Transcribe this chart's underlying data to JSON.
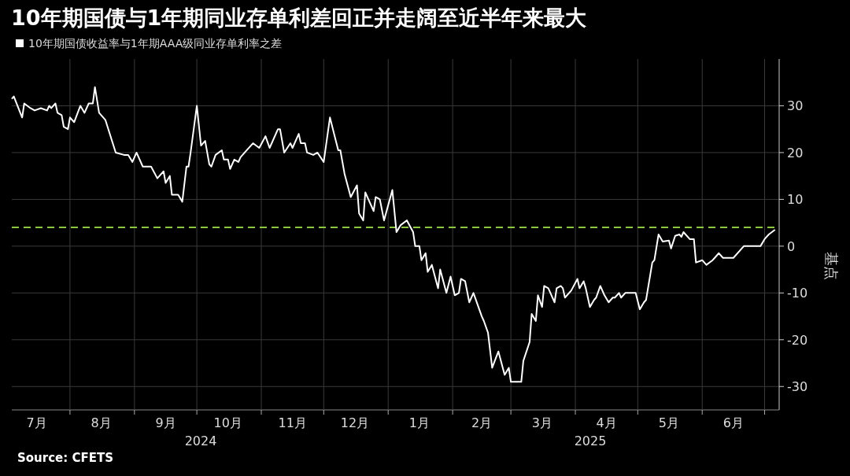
{
  "chart_data": {
    "type": "line",
    "title": "10年期国债与1年期同业存单利差回正并走阔至近半年来最大",
    "ylabel": "基点",
    "legend": "top left",
    "grid": true,
    "annotations": [
      "Source: CFETS",
      "2024",
      "2025"
    ],
    "xlim": [
      "2024-07-01",
      "2025-07-08"
    ],
    "xticks": [
      {
        "value": "2024-07-16",
        "label": "7月"
      },
      {
        "value": "2024-08-01",
        "label": null
      },
      {
        "value": "2024-08-16",
        "label": "8月"
      },
      {
        "value": "2024-09-01",
        "label": null
      },
      {
        "value": "2024-09-16",
        "label": "9月"
      },
      {
        "value": "2024-10-01",
        "label": null
      },
      {
        "value": "2024-10-16",
        "label": "10月"
      },
      {
        "value": "2024-11-01",
        "label": null
      },
      {
        "value": "2024-11-16",
        "label": "11月"
      },
      {
        "value": "2024-12-01",
        "label": null
      },
      {
        "value": "2024-12-16",
        "label": "12月"
      },
      {
        "value": "2025-01-01",
        "label": null
      },
      {
        "value": "2025-01-16",
        "label": "1月"
      },
      {
        "value": "2025-02-01",
        "label": null
      },
      {
        "value": "2025-02-15",
        "label": "2月"
      },
      {
        "value": "2025-03-01",
        "label": null
      },
      {
        "value": "2025-03-16",
        "label": "3月"
      },
      {
        "value": "2025-04-01",
        "label": null
      },
      {
        "value": "2025-04-16",
        "label": "4月"
      },
      {
        "value": "2025-05-01",
        "label": null
      },
      {
        "value": "2025-05-16",
        "label": "5月"
      },
      {
        "value": "2025-06-01",
        "label": null
      },
      {
        "value": "2025-06-16",
        "label": "6月"
      },
      {
        "value": "2025-07-01",
        "label": null
      }
    ],
    "ylim": [
      -35,
      40
    ],
    "yticks": [
      -30,
      -20,
      -10,
      0,
      10,
      20,
      30
    ],
    "ref_lines": [
      {
        "axis": "y",
        "value": 4,
        "color": "#8dc63f",
        "line_style": "dashed"
      }
    ],
    "series": [
      {
        "name": "10年期国债收益率与1年期AAA级同业存单利率之差",
        "color": "#ffffff",
        "x": [
          "2024-07-04",
          "2024-07-05",
          "2024-07-09",
          "2024-07-10",
          "2024-07-13",
          "2024-07-15",
          "2024-07-18",
          "2024-07-21",
          "2024-07-22",
          "2024-07-23",
          "2024-07-25",
          "2024-07-26",
          "2024-07-28",
          "2024-07-29",
          "2024-07-31",
          "2024-08-01",
          "2024-08-03",
          "2024-08-06",
          "2024-08-08",
          "2024-08-10",
          "2024-08-12",
          "2024-08-13",
          "2024-08-15",
          "2024-08-18",
          "2024-08-23",
          "2024-08-27",
          "2024-08-29",
          "2024-08-31",
          "2024-09-02",
          "2024-09-05",
          "2024-09-09",
          "2024-09-12",
          "2024-09-15",
          "2024-09-16",
          "2024-09-18",
          "2024-09-19",
          "2024-09-22",
          "2024-09-24",
          "2024-09-26",
          "2024-09-27",
          "2024-09-28",
          "2024-10-01",
          "2024-10-03",
          "2024-10-05",
          "2024-10-07",
          "2024-10-08",
          "2024-10-10",
          "2024-10-13",
          "2024-10-14",
          "2024-10-16",
          "2024-10-17",
          "2024-10-19",
          "2024-10-21",
          "2024-10-22",
          "2024-10-25",
          "2024-10-28",
          "2024-10-31",
          "2024-11-03",
          "2024-11-05",
          "2024-11-09",
          "2024-11-10",
          "2024-11-12",
          "2024-11-15",
          "2024-11-16",
          "2024-11-19",
          "2024-11-20",
          "2024-11-22",
          "2024-11-23",
          "2024-11-26",
          "2024-11-28",
          "2024-12-01",
          "2024-12-04",
          "2024-12-06",
          "2024-12-08",
          "2024-12-09",
          "2024-12-11",
          "2024-12-14",
          "2024-12-17",
          "2024-12-18",
          "2024-12-20",
          "2024-12-21",
          "2024-12-25",
          "2024-12-26",
          "2024-12-28",
          "2024-12-30",
          "2025-01-03",
          "2025-01-05",
          "2025-01-07",
          "2025-01-10",
          "2025-01-13",
          "2025-01-14",
          "2025-01-16",
          "2025-01-17",
          "2025-01-19",
          "2025-01-20",
          "2025-01-22",
          "2025-01-25",
          "2025-01-26",
          "2025-01-29",
          "2025-01-31",
          "2025-02-02",
          "2025-02-04",
          "2025-02-05",
          "2025-02-07",
          "2025-02-09",
          "2025-02-11",
          "2025-02-15",
          "2025-02-16",
          "2025-02-18",
          "2025-02-20",
          "2025-02-23",
          "2025-02-26",
          "2025-02-28",
          "2025-03-01",
          "2025-03-04",
          "2025-03-06",
          "2025-03-07",
          "2025-03-10",
          "2025-03-11",
          "2025-03-13",
          "2025-03-14",
          "2025-03-16",
          "2025-03-17",
          "2025-03-19",
          "2025-03-22",
          "2025-03-23",
          "2025-03-25",
          "2025-03-26",
          "2025-03-27",
          "2025-03-30",
          "2025-04-02",
          "2025-04-03",
          "2025-04-05",
          "2025-04-06",
          "2025-04-08",
          "2025-04-10",
          "2025-04-11",
          "2025-04-13",
          "2025-04-15",
          "2025-04-17",
          "2025-04-19",
          "2025-04-20",
          "2025-04-22",
          "2025-04-23",
          "2025-04-25",
          "2025-04-30",
          "2025-05-02",
          "2025-05-04",
          "2025-05-05",
          "2025-05-08",
          "2025-05-09",
          "2025-05-11",
          "2025-05-13",
          "2025-05-16",
          "2025-05-17",
          "2025-05-19",
          "2025-05-21",
          "2025-05-22",
          "2025-05-23",
          "2025-05-26",
          "2025-05-28",
          "2025-05-29",
          "2025-06-01",
          "2025-06-03",
          "2025-06-06",
          "2025-06-07",
          "2025-06-09",
          "2025-06-11",
          "2025-06-16",
          "2025-06-21",
          "2025-06-22",
          "2025-06-24",
          "2025-06-29",
          "2025-07-01",
          "2025-07-03",
          "2025-07-06"
        ],
        "values": [
          31.5,
          32,
          27.5,
          30.5,
          29.5,
          29,
          29.5,
          29,
          30,
          29.5,
          30.5,
          28.5,
          28,
          25.5,
          25,
          27.5,
          26.5,
          30,
          28.5,
          30.5,
          30.5,
          34,
          28.5,
          27,
          20,
          19.5,
          19.5,
          18,
          20,
          17,
          17,
          14.5,
          16,
          13.5,
          15,
          11,
          11,
          9.5,
          17,
          17,
          20,
          30,
          21.5,
          22.5,
          17.5,
          17,
          19.5,
          20.5,
          18.5,
          18.5,
          16.5,
          18.5,
          18,
          19,
          20.5,
          22,
          21,
          23.5,
          21,
          25,
          25,
          20,
          22,
          21,
          24,
          22,
          22,
          20,
          19.5,
          20,
          18,
          27.5,
          24,
          20.5,
          20.5,
          15.5,
          10.5,
          13,
          7,
          5.5,
          11.5,
          7.5,
          10.5,
          10,
          5.5,
          12,
          3,
          4.5,
          5.5,
          3,
          0,
          0,
          -3,
          -1.5,
          -5.5,
          -4,
          -9,
          -5,
          -10,
          -6.5,
          -10.5,
          -10,
          -7,
          -7.5,
          -12,
          -10,
          -15,
          -16,
          -18.5,
          -26,
          -22.5,
          -27.5,
          -26,
          -29,
          -29,
          -29,
          -24.5,
          -20.5,
          -14.5,
          -16,
          -10.5,
          -13,
          -8.5,
          -9,
          -12,
          -9,
          -8.5,
          -9,
          -11,
          -9.5,
          -7,
          -9,
          -7.5,
          -9,
          -13,
          -11.5,
          -11,
          -8.5,
          -10.5,
          -12,
          -11,
          -11,
          -10,
          -11,
          -10,
          -10,
          -13.5,
          -12,
          -11.5,
          -3.5,
          -3,
          2.5,
          1,
          1.2,
          -0.5,
          2.2,
          2.5,
          2,
          3,
          1.5,
          1.5,
          -3.5,
          -3,
          -4,
          -3,
          -2.5,
          -1.5,
          -2.5,
          -2.5,
          0,
          0,
          0,
          0,
          1.5,
          2.5,
          3.5
        ]
      }
    ]
  }
}
